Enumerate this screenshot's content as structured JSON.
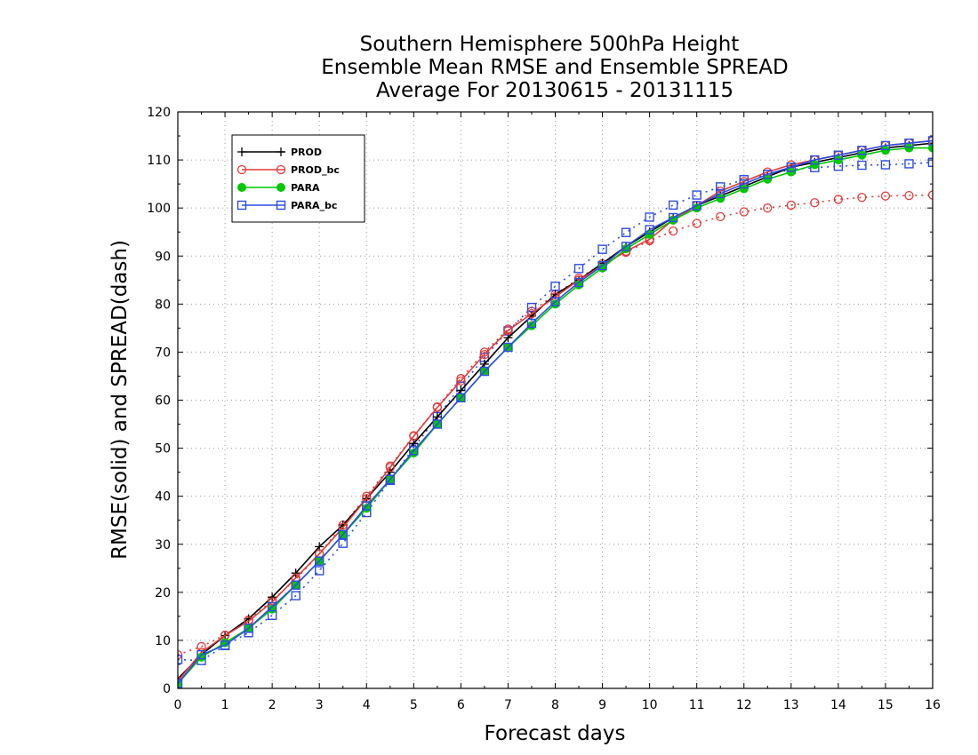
{
  "chart_data": {
    "type": "line",
    "title_lines": [
      "Southern Hemisphere 500hPa Height",
      "Ensemble Mean RMSE and Ensemble SPREAD",
      "Average For 20130615 - 20131115"
    ],
    "xlabel": "Forecast days",
    "ylabel": "RMSE(solid) and SPREAD(dash)",
    "xlim": [
      0,
      16
    ],
    "ylim": [
      0,
      120
    ],
    "x_ticks": [
      "0",
      "1",
      "2",
      "3",
      "4",
      "5",
      "6",
      "7",
      "8",
      "9",
      "10",
      "11",
      "12",
      "13",
      "14",
      "15",
      "16"
    ],
    "y_ticks": [
      "0",
      "10",
      "20",
      "30",
      "40",
      "50",
      "60",
      "70",
      "80",
      "90",
      "100",
      "110",
      "120"
    ],
    "grid": true,
    "legend_position": "top-left",
    "x": [
      0,
      0.5,
      1,
      1.5,
      2,
      2.5,
      3,
      3.5,
      4,
      4.5,
      5,
      5.5,
      6,
      6.5,
      7,
      7.5,
      8,
      8.5,
      9,
      9.5,
      10,
      10.5,
      11,
      11.5,
      12,
      12.5,
      13,
      13.5,
      14,
      14.5,
      15,
      15.5,
      16
    ],
    "series": [
      {
        "name": "PROD",
        "color": "#000000",
        "marker": "plus",
        "rmse": [
          2,
          7,
          11,
          14.5,
          19,
          24,
          29.5,
          34,
          39.5,
          45,
          51,
          56.5,
          62,
          67.5,
          73,
          77.5,
          82,
          85,
          88.5,
          92,
          95,
          98,
          100.5,
          102.5,
          104.5,
          106.5,
          108.5,
          109.5,
          110.5,
          111.5,
          112.5,
          113,
          113.5
        ],
        "spread": null
      },
      {
        "name": "PROD_bc",
        "color": "#e03c3c",
        "marker": "circle",
        "rmse": [
          1.5,
          7.5,
          11,
          14,
          18,
          23,
          28,
          33.5,
          39.5,
          46,
          52.5,
          58.5,
          64,
          69.5,
          74.5,
          78,
          81.5,
          85,
          88,
          91,
          93.5,
          97.5,
          100.5,
          103.5,
          105.5,
          107.5,
          109,
          110,
          111,
          112,
          113,
          113.5,
          114
        ],
        "spread": [
          7,
          8.7,
          11.1,
          14.2,
          18.3,
          22.7,
          28,
          34,
          40,
          46.3,
          52.6,
          58.6,
          64.5,
          70,
          74.8,
          78.5,
          82,
          85.4,
          88.4,
          90.8,
          93.2,
          95.2,
          96.8,
          98.2,
          99.2,
          100,
          100.6,
          101.1,
          101.8,
          102.2,
          102.5,
          102.6,
          102.7
        ]
      },
      {
        "name": "PARA",
        "color": "#00c800",
        "marker": "dot",
        "rmse": [
          1,
          6.5,
          9.5,
          12.5,
          16.5,
          21.5,
          26.5,
          32,
          37.5,
          43.5,
          49,
          55,
          60.5,
          66,
          71,
          75.5,
          80,
          84,
          87.5,
          91.5,
          94.5,
          97.5,
          100,
          102,
          104,
          106,
          107.5,
          109,
          110,
          111,
          112,
          112.5,
          112.5
        ],
        "spread": null
      },
      {
        "name": "PARA_bc",
        "color": "#2f4de0",
        "marker": "square",
        "rmse": [
          1,
          7,
          9,
          12.5,
          17,
          21.5,
          26.5,
          32,
          38,
          43.5,
          49.5,
          55,
          60.5,
          66,
          71,
          76,
          80.5,
          84.5,
          88,
          92,
          95.5,
          98,
          100.5,
          103,
          105,
          107,
          108.5,
          110,
          111,
          112,
          113,
          113.5,
          114
        ],
        "spread": [
          6,
          5.8,
          8.9,
          11.6,
          15.2,
          19.3,
          24.5,
          30.2,
          36.6,
          43.3,
          50.1,
          56.6,
          62.9,
          68.9,
          74.4,
          79.3,
          83.7,
          87.4,
          91.4,
          94.9,
          98.1,
          100.6,
          102.7,
          104.4,
          105.9,
          107,
          108,
          108.4,
          108.7,
          108.9,
          109,
          109.2,
          109.5
        ]
      }
    ]
  }
}
